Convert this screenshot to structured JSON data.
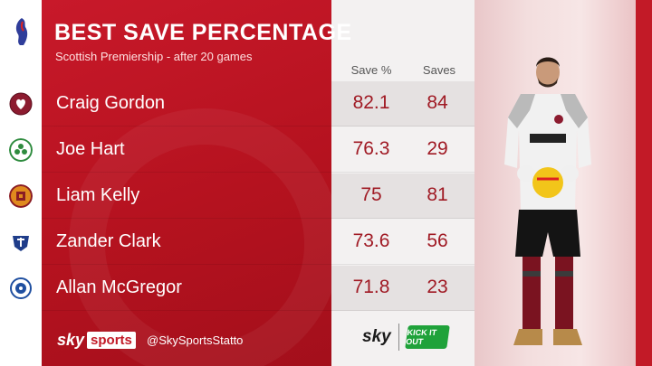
{
  "header": {
    "title": "BEST SAVE PERCENTAGE",
    "subtitle": "Scottish Premiership - after 20 games"
  },
  "columns": {
    "pct": "Save %",
    "saves": "Saves"
  },
  "rows": [
    {
      "name": "Craig Gordon",
      "pct": "82.1",
      "saves": "84",
      "badge_color": "#8c1b2f"
    },
    {
      "name": "Joe Hart",
      "pct": "76.3",
      "saves": "29",
      "badge_color": "#2e8b3e"
    },
    {
      "name": "Liam Kelly",
      "pct": "75",
      "saves": "81",
      "badge_color": "#e08a1e"
    },
    {
      "name": "Zander Clark",
      "pct": "73.6",
      "saves": "56",
      "badge_color": "#1f3d8a"
    },
    {
      "name": "Allan McGregor",
      "pct": "71.8",
      "saves": "23",
      "badge_color": "#1f4fa0"
    }
  ],
  "footer": {
    "sky": "sky",
    "sports": "sports",
    "handle": "@SkySportsStatto",
    "sky_right": "sky",
    "kick_it_out": "KICK IT OUT"
  },
  "colors": {
    "accent": "#c8192a",
    "value_text": "#a01a24"
  },
  "icons": {
    "league": "spfl-lion-icon",
    "player": "goalkeeper-photo"
  }
}
